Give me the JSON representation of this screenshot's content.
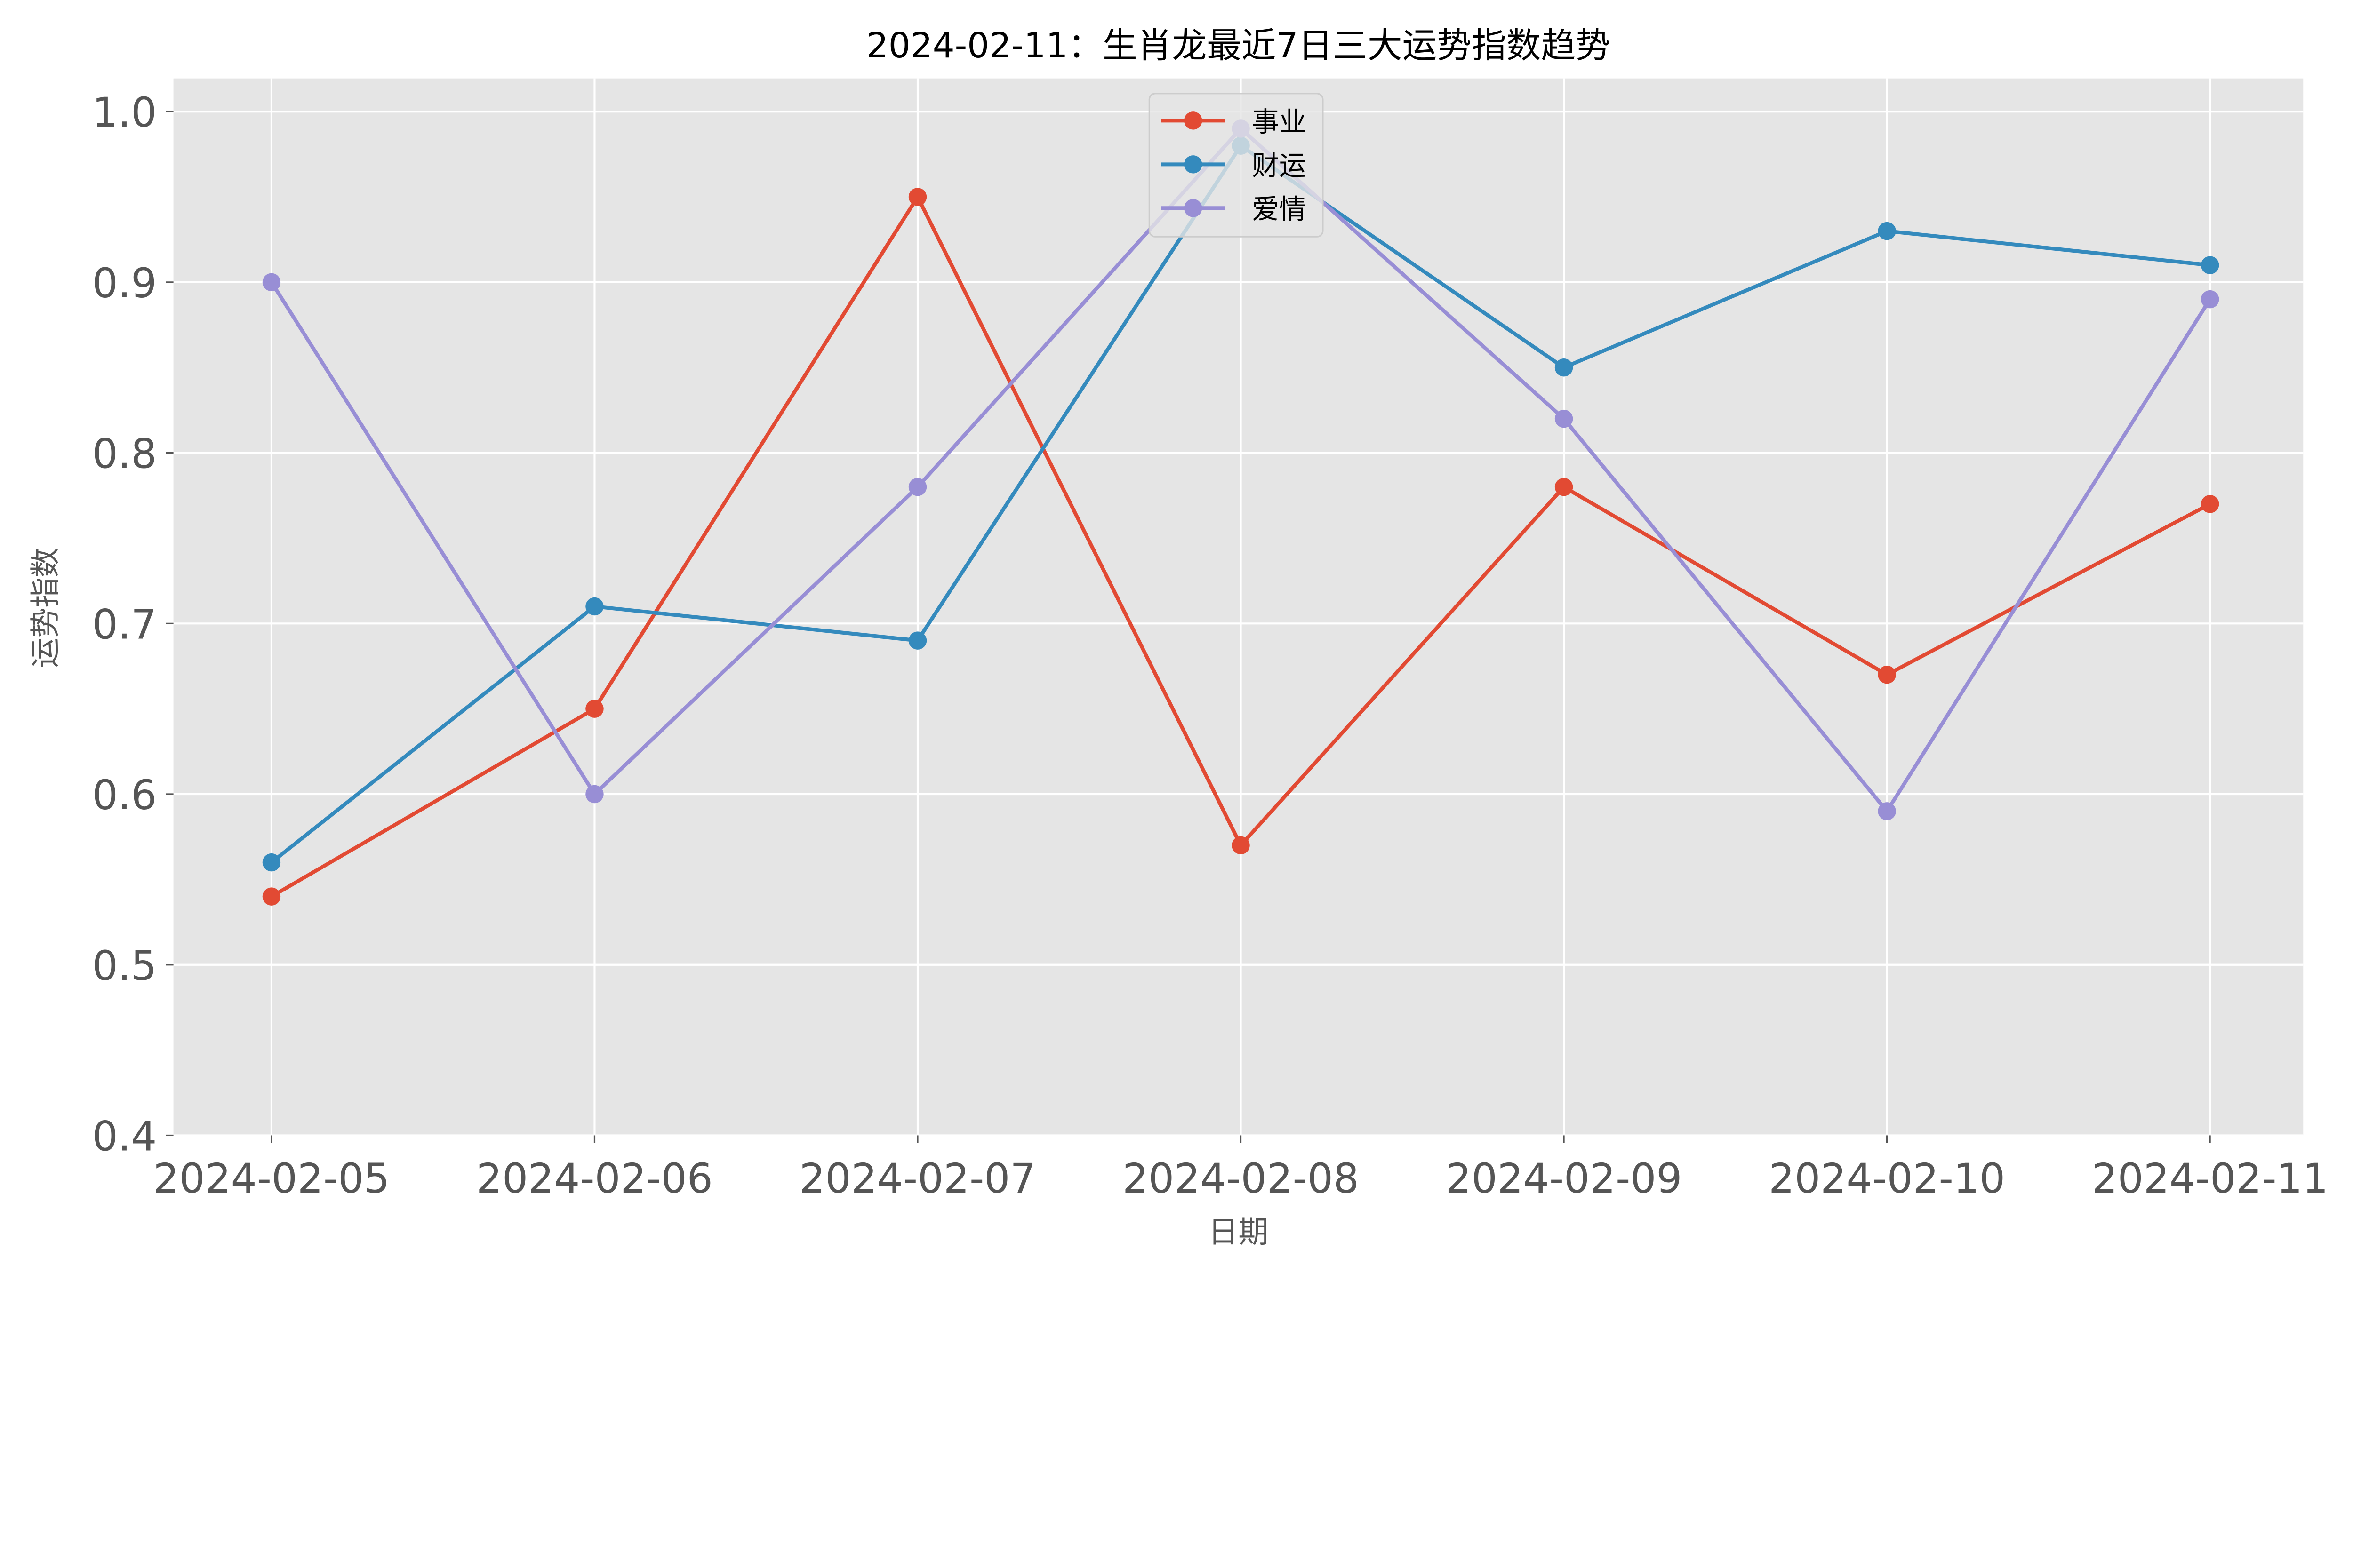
{
  "chart_data": {
    "type": "line",
    "title": "2024-02-11：生肖龙最近7日三大运势指数趋势",
    "xlabel": "日期",
    "ylabel": "运势指数",
    "categories": [
      "2024-02-05",
      "2024-02-06",
      "2024-02-07",
      "2024-02-08",
      "2024-02-09",
      "2024-02-10",
      "2024-02-11"
    ],
    "ylim": [
      0.4,
      1.02
    ],
    "yticks": [
      "0.4",
      "0.5",
      "0.6",
      "0.7",
      "0.8",
      "0.9",
      "1.0"
    ],
    "grid": true,
    "legend": "top-center",
    "series": [
      {
        "name": "事业",
        "color": "#E24A33",
        "values": [
          0.54,
          0.65,
          0.95,
          0.57,
          0.78,
          0.67,
          0.77
        ]
      },
      {
        "name": "财运",
        "color": "#348ABD",
        "values": [
          0.56,
          0.71,
          0.69,
          0.98,
          0.85,
          0.93,
          0.91
        ]
      },
      {
        "name": "爱情",
        "color": "#988ED5",
        "values": [
          0.9,
          0.6,
          0.78,
          0.99,
          0.82,
          0.59,
          0.89
        ]
      }
    ]
  }
}
